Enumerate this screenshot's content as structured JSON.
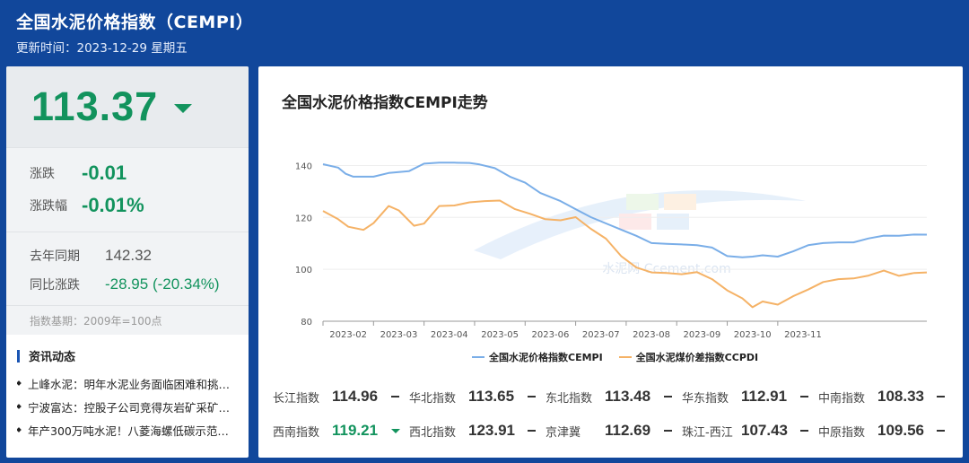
{
  "header": {
    "title": "全国水泥价格指数（CEMPI）",
    "update_time": "更新时间：2023-12-29 星期五"
  },
  "summary": {
    "price": "113.37",
    "price_trend": "down-triangle-icon",
    "change_label": "涨跌",
    "change_value": "-0.01",
    "change_pct_label": "涨跌幅",
    "change_pct_value": "-0.01%",
    "last_year_label": "去年同期",
    "last_year_value": "142.32",
    "yoy_label": "同比涨跌",
    "yoy_value": "-28.95",
    "yoy_pct": "(-20.34%)",
    "base_note": "指数基期：2009年=100点"
  },
  "news": {
    "title": "资讯动态",
    "items": [
      "上峰水泥：明年水泥业务面临困难和挑…",
      "宁波富达：控股子公司竞得灰岩矿采矿…",
      "年产300万吨水泥！八菱海螺低碳示范…"
    ]
  },
  "chart": {
    "title": "全国水泥价格指数CEMPI走势",
    "watermark": "水泥网 Ccement.com"
  },
  "chart_data": {
    "type": "line",
    "x_ticks": [
      "2023-02",
      "2023-03",
      "2023-04",
      "2023-05",
      "2023-06",
      "2023-07",
      "2023-08",
      "2023-09",
      "2023-10",
      "2023-11"
    ],
    "y_ticks": [
      80,
      100,
      120,
      140
    ],
    "ylim": [
      80,
      145
    ],
    "xlim": [
      1,
      12.95
    ],
    "grid": "horizontal",
    "legend_position": "bottom",
    "series": [
      {
        "name": "全国水泥价格指数CEMPI",
        "color": "#7aaee8",
        "x": [
          1.0,
          1.3,
          1.45,
          1.6,
          2.0,
          2.3,
          2.7,
          3.0,
          3.3,
          3.6,
          3.9,
          4.1,
          4.4,
          4.7,
          5.0,
          5.3,
          5.7,
          6.0,
          6.3,
          6.6,
          6.9,
          7.2,
          7.5,
          7.8,
          8.1,
          8.4,
          8.7,
          9.0,
          9.3,
          9.5,
          9.7,
          10.0,
          10.3,
          10.6,
          10.9,
          11.2,
          11.5,
          11.8,
          12.1,
          12.4,
          12.7,
          12.95
        ],
        "values": [
          140.5,
          139.2,
          136.8,
          135.7,
          135.7,
          137.1,
          137.8,
          140.7,
          141.1,
          141.1,
          141.0,
          140.4,
          139.0,
          135.7,
          133.4,
          129.4,
          126.3,
          123.2,
          120.1,
          117.7,
          115.3,
          112.9,
          110.1,
          109.8,
          109.6,
          109.3,
          108.4,
          105.1,
          104.6,
          104.9,
          105.4,
          104.9,
          106.9,
          109.3,
          110.1,
          110.4,
          110.4,
          111.9,
          113.0,
          112.9,
          113.4,
          113.37
        ]
      },
      {
        "name": "全国水泥煤价差指数CCPDI",
        "color": "#f5b266",
        "x": [
          1.0,
          1.3,
          1.5,
          1.8,
          2.0,
          2.3,
          2.5,
          2.8,
          3.0,
          3.3,
          3.6,
          3.9,
          4.2,
          4.5,
          4.8,
          5.1,
          5.4,
          5.7,
          6.0,
          6.3,
          6.6,
          6.9,
          7.2,
          7.5,
          7.8,
          8.1,
          8.4,
          8.7,
          9.0,
          9.3,
          9.5,
          9.7,
          10.0,
          10.3,
          10.6,
          10.9,
          11.2,
          11.5,
          11.8,
          12.1,
          12.4,
          12.7,
          12.95
        ],
        "values": [
          122.5,
          119.3,
          116.4,
          115.2,
          117.8,
          124.4,
          122.7,
          116.8,
          117.6,
          124.4,
          124.6,
          125.8,
          126.3,
          126.5,
          123.2,
          121.4,
          119.3,
          118.9,
          120.1,
          115.6,
          111.8,
          105.1,
          100.7,
          98.8,
          98.6,
          98.1,
          98.9,
          96.2,
          91.9,
          88.8,
          85.4,
          87.6,
          86.4,
          89.6,
          92.2,
          95.1,
          96.2,
          96.5,
          97.6,
          99.5,
          97.5,
          98.6,
          98.8
        ]
      }
    ]
  },
  "indices": [
    [
      {
        "name": "长江指数",
        "value": "114.96",
        "trend": "flat"
      },
      {
        "name": "华北指数",
        "value": "113.65",
        "trend": "flat"
      },
      {
        "name": "东北指数",
        "value": "113.48",
        "trend": "flat"
      },
      {
        "name": "华东指数",
        "value": "112.91",
        "trend": "flat"
      },
      {
        "name": "中南指数",
        "value": "108.33",
        "trend": "flat"
      }
    ],
    [
      {
        "name": "西南指数",
        "value": "119.21",
        "trend": "down"
      },
      {
        "name": "西北指数",
        "value": "123.91",
        "trend": "flat"
      },
      {
        "name": "京津冀",
        "value": "112.69",
        "trend": "flat"
      },
      {
        "name": "珠江-西江",
        "value": "107.43",
        "trend": "flat"
      },
      {
        "name": "中原指数",
        "value": "109.56",
        "trend": "flat"
      }
    ]
  ]
}
